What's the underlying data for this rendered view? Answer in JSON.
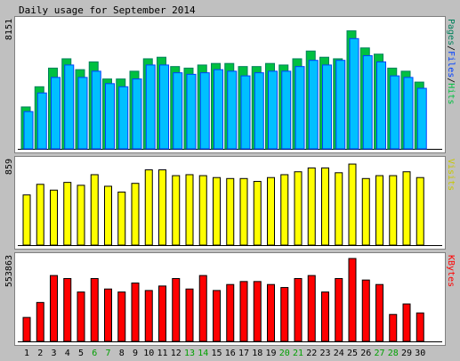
{
  "chart_data": {
    "type": "bar",
    "title": "Daily usage for September 2014",
    "categories": [
      "1",
      "2",
      "3",
      "4",
      "5",
      "6",
      "7",
      "8",
      "9",
      "10",
      "11",
      "12",
      "13",
      "14",
      "15",
      "16",
      "17",
      "18",
      "19",
      "20",
      "21",
      "22",
      "23",
      "24",
      "25",
      "26",
      "27",
      "28",
      "29",
      "30"
    ],
    "weekend_days": [
      "6",
      "7",
      "13",
      "14",
      "20",
      "21",
      "27",
      "28"
    ],
    "colors": {
      "background": "#c0c0c0",
      "panel": "#ffffff",
      "hits": "#00805c",
      "hits_fill": "#00c040",
      "files": "#0040ff",
      "files_fill": "#00c0ff",
      "visits": "#ffff00",
      "kbytes": "#ff0000",
      "weekend_label": "#00a000",
      "text": "#000000"
    },
    "panels": [
      {
        "name": "pages-files-hits",
        "ymax_label": "8151",
        "ylim": [
          0,
          8151
        ],
        "legend": [
          {
            "text": "Pages",
            "color": "#00805c"
          },
          {
            "text": "/",
            "color": "#000000"
          },
          {
            "text": "Files",
            "color": "#0040ff"
          },
          {
            "text": "/",
            "color": "#000000"
          },
          {
            "text": "Hits",
            "color": "#00c040"
          }
        ],
        "series": [
          {
            "name": "Hits",
            "values": [
              2700,
              4000,
              5200,
              5800,
              5100,
              5600,
              4500,
              4500,
              5000,
              5800,
              5900,
              5300,
              5200,
              5400,
              5500,
              5500,
              5300,
              5300,
              5500,
              5400,
              5800,
              6300,
              5900,
              5800,
              7600,
              6500,
              6100,
              5200,
              5000,
              4300
            ]
          },
          {
            "name": "Files",
            "values": [
              2400,
              3600,
              4600,
              5400,
              4600,
              5000,
              4200,
              4000,
              4500,
              5400,
              5400,
              4900,
              4800,
              4900,
              5100,
              5000,
              4700,
              4900,
              5000,
              5000,
              5300,
              5700,
              5400,
              5700,
              7100,
              6000,
              5600,
              4700,
              4600,
              3900
            ]
          }
        ]
      },
      {
        "name": "visits",
        "ymax_label": "859",
        "ylim": [
          0,
          859
        ],
        "legend": [
          {
            "text": "Visits",
            "color": "#c8c800"
          }
        ],
        "series": [
          {
            "name": "Visits",
            "values": [
              520,
              630,
              570,
              650,
              620,
              730,
              610,
              550,
              640,
              780,
              780,
              720,
              730,
              720,
              700,
              690,
              690,
              660,
              700,
              730,
              760,
              800,
              800,
              750,
              840,
              690,
              720,
              720,
              760,
              700
            ]
          }
        ]
      },
      {
        "name": "kbytes",
        "ymax_label": "553863",
        "ylim": [
          0,
          553863
        ],
        "legend": [
          {
            "text": "KBytes",
            "color": "#ff0000"
          }
        ],
        "series": [
          {
            "name": "KBytes",
            "values": [
              160000,
              260000,
              440000,
              420000,
              330000,
              420000,
              350000,
              330000,
              390000,
              340000,
              370000,
              420000,
              350000,
              440000,
              340000,
              380000,
              400000,
              400000,
              380000,
              360000,
              420000,
              440000,
              330000,
              420000,
              553863,
              410000,
              380000,
              180000,
              250000,
              190000
            ]
          }
        ]
      }
    ]
  }
}
